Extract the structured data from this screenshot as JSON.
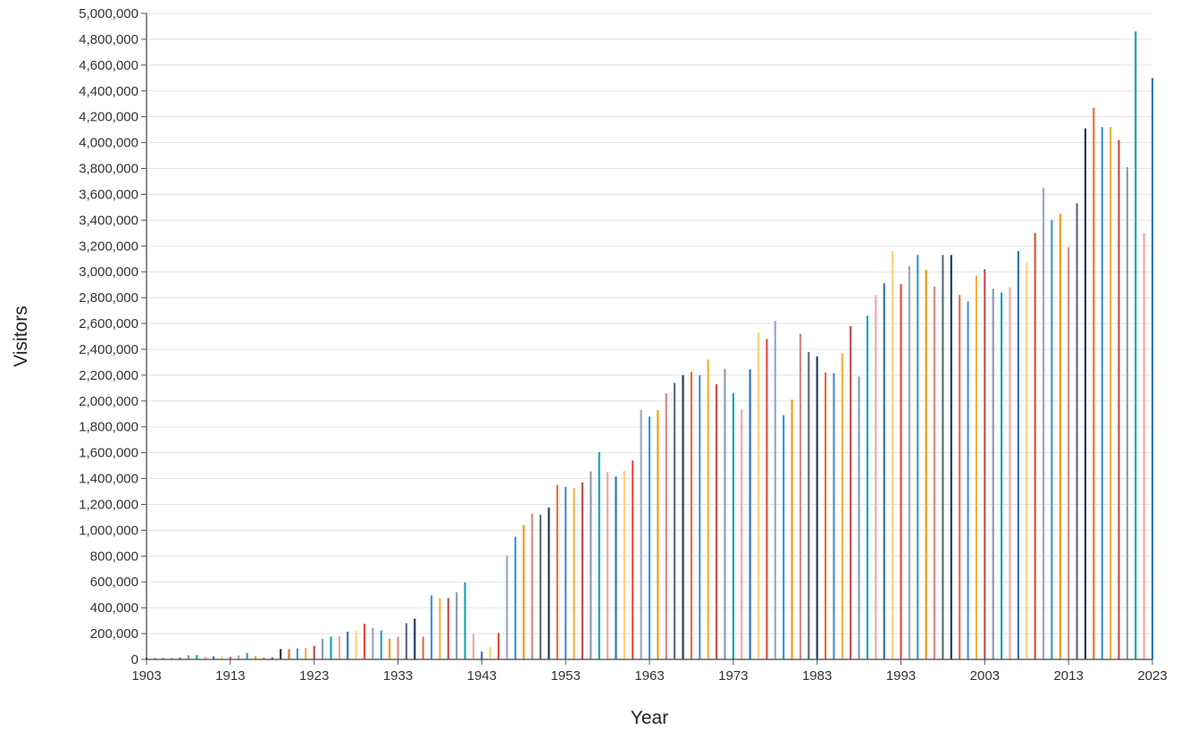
{
  "chart_data": {
    "type": "bar",
    "title": "",
    "xlabel": "Year",
    "ylabel": "Visitors",
    "ylim": [
      0,
      5000000
    ],
    "xlim": [
      1903,
      2023
    ],
    "grid": true,
    "legend": "none",
    "x_ticks": [
      "1903",
      "1913",
      "1923",
      "1933",
      "1943",
      "1953",
      "1963",
      "1973",
      "1983",
      "1993",
      "2003",
      "2013",
      "2023"
    ],
    "y_ticks": [
      "0",
      "200,000",
      "400,000",
      "600,000",
      "800,000",
      "1,000,000",
      "1,200,000",
      "1,400,000",
      "1,600,000",
      "1,800,000",
      "2,000,000",
      "2,200,000",
      "2,400,000",
      "2,600,000",
      "2,800,000",
      "3,000,000",
      "3,200,000",
      "3,400,000",
      "3,600,000",
      "3,800,000",
      "4,000,000",
      "4,200,000",
      "4,400,000",
      "4,600,000",
      "4,800,000",
      "5,000,000"
    ],
    "palette": [
      "#1f3a5f",
      "#e8703a",
      "#4a90d9",
      "#f5b041",
      "#c0504d",
      "#8e9bb5",
      "#17a2b8",
      "#f4a6a6",
      "#2e75b6",
      "#ffd27f",
      "#e74c3c",
      "#9aa7c7",
      "#3498db",
      "#f39c12",
      "#d98880",
      "#5d6d7e"
    ],
    "categories": [
      1903,
      1904,
      1905,
      1906,
      1907,
      1908,
      1909,
      1910,
      1911,
      1912,
      1913,
      1914,
      1915,
      1916,
      1917,
      1918,
      1919,
      1920,
      1921,
      1922,
      1923,
      1924,
      1925,
      1926,
      1927,
      1928,
      1929,
      1930,
      1931,
      1932,
      1933,
      1934,
      1935,
      1936,
      1937,
      1938,
      1939,
      1940,
      1941,
      1942,
      1943,
      1944,
      1945,
      1946,
      1947,
      1948,
      1949,
      1950,
      1951,
      1952,
      1953,
      1954,
      1955,
      1956,
      1957,
      1958,
      1959,
      1960,
      1961,
      1962,
      1963,
      1964,
      1965,
      1966,
      1967,
      1968,
      1969,
      1970,
      1971,
      1972,
      1973,
      1974,
      1975,
      1976,
      1977,
      1978,
      1979,
      1980,
      1981,
      1982,
      1983,
      1984,
      1985,
      1986,
      1987,
      1988,
      1989,
      1990,
      1991,
      1992,
      1993,
      1994,
      1995,
      1996,
      1997,
      1998,
      1999,
      2000,
      2001,
      2002,
      2003,
      2004,
      2005,
      2006,
      2007,
      2008,
      2009,
      2010,
      2011,
      2012,
      2013,
      2014,
      2015,
      2016,
      2017,
      2018,
      2019,
      2020,
      2021,
      2022,
      2023
    ],
    "values": [
      13000,
      11000,
      12000,
      14000,
      16000,
      32000,
      34000,
      22000,
      24000,
      26000,
      20000,
      30000,
      50000,
      26000,
      16000,
      17000,
      80000,
      80000,
      85000,
      90000,
      105000,
      160000,
      175000,
      180000,
      215000,
      225000,
      275000,
      245000,
      225000,
      160000,
      175000,
      280000,
      315000,
      175000,
      495000,
      475000,
      475000,
      520000,
      595000,
      195000,
      60000,
      95000,
      205000,
      805000,
      950000,
      1040000,
      1130000,
      1120000,
      1175000,
      1350000,
      1335000,
      1325000,
      1370000,
      1455000,
      1605000,
      1450000,
      1415000,
      1460000,
      1540000,
      1930000,
      1880000,
      1930000,
      2060000,
      2140000,
      2200000,
      2225000,
      2200000,
      2320000,
      2130000,
      2250000,
      2060000,
      1935000,
      2245000,
      2530000,
      2480000,
      2620000,
      1890000,
      2010000,
      2520000,
      2380000,
      2345000,
      2220000,
      2215000,
      2370000,
      2580000,
      2190000,
      2660000,
      2820000,
      2910000,
      3160000,
      2905000,
      3045000,
      3130000,
      3015000,
      2885000,
      3130000,
      3130000,
      2820000,
      2770000,
      2970000,
      3020000,
      2870000,
      2840000,
      2880000,
      3160000,
      3070000,
      3300000,
      3650000,
      3400000,
      3450000,
      3190000,
      3530000,
      4110000,
      4270000,
      4120000,
      4120000,
      4020000,
      3810000,
      4860000,
      3300000,
      4500000
    ]
  }
}
